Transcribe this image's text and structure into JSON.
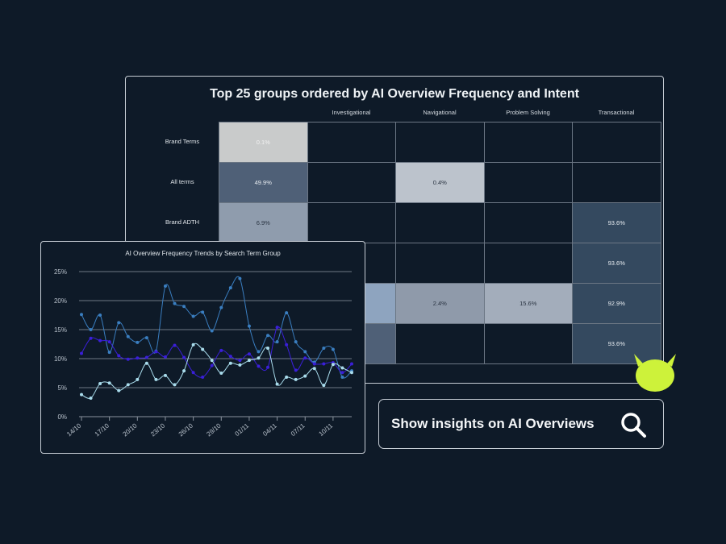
{
  "heatmap": {
    "title": "Top 25 groups ordered by AI Overview Frequency and Intent",
    "columns": [
      "",
      "Investigational",
      "Navigational",
      "Problem Solving",
      "Transactional"
    ],
    "rows": [
      {
        "label": "Brand Terms",
        "cells": [
          {
            "value": "0.1%",
            "color": "#c9cbcb",
            "text": "#f2f2f2"
          },
          null,
          null,
          null,
          null
        ]
      },
      {
        "label": "All terms",
        "cells": [
          {
            "value": "49.9%",
            "color": "#4f6077"
          },
          null,
          {
            "value": "0.4%",
            "color": "#bcc3cc",
            "text": "#2a3442"
          },
          null,
          null
        ]
      },
      {
        "label": "Brand ADTH",
        "cells": [
          {
            "value": "6.9%",
            "color": "#8f9cad",
            "text": "#2a3442"
          },
          null,
          null,
          null,
          {
            "value": "93.6%",
            "color": "#34495f"
          }
        ]
      },
      {
        "label": "",
        "cells": [
          null,
          null,
          null,
          null,
          {
            "value": "93.6%",
            "color": "#34495f"
          }
        ]
      },
      {
        "label": "",
        "cells": [
          null,
          {
            "value": "",
            "color": "#8ea4bf"
          },
          {
            "value": "2.4%",
            "color": "#8f9aaa",
            "text": "#2a3442"
          },
          {
            "value": "15.6%",
            "color": "#a3adbb",
            "text": "#2a3442"
          },
          {
            "value": "92.9%",
            "color": "#34495f"
          }
        ]
      },
      {
        "label": "",
        "cells": [
          null,
          {
            "value": "",
            "color": "#4f6077"
          },
          null,
          null,
          {
            "value": "93.6%",
            "color": "#34495f"
          }
        ]
      }
    ]
  },
  "chart_data": {
    "type": "line",
    "title": "AI Overview Frequency Trends by Search Term Group",
    "x": [
      "14/10",
      "15/10",
      "16/10",
      "17/10",
      "18/10",
      "19/10",
      "20/10",
      "21/10",
      "22/10",
      "23/10",
      "24/10",
      "25/10",
      "26/10",
      "27/10",
      "28/10",
      "29/10",
      "30/10",
      "31/10",
      "01/11",
      "02/11",
      "03/11",
      "04/11",
      "05/11",
      "06/11",
      "07/11",
      "08/11",
      "09/11",
      "10/11",
      "11/11",
      "12/11"
    ],
    "xticks": [
      "14/10",
      "17/10",
      "20/10",
      "23/10",
      "26/10",
      "29/10",
      "01/11",
      "04/11",
      "07/11",
      "10/11"
    ],
    "yticks": [
      "0%",
      "5%",
      "10%",
      "15%",
      "20%",
      "25%"
    ],
    "ylim": [
      0,
      25
    ],
    "grid": true,
    "series": [
      {
        "color": "#3a7ec0",
        "values": [
          17.6,
          15.0,
          17.5,
          11.1,
          16.2,
          13.8,
          12.8,
          13.6,
          11.3,
          22.5,
          19.5,
          19.0,
          17.3,
          18.0,
          14.8,
          18.8,
          22.2,
          23.8,
          15.6,
          11.2,
          14.0,
          12.9,
          17.9,
          12.9,
          11.2,
          9.4,
          11.8,
          11.6,
          6.8,
          7.9
        ]
      },
      {
        "color": "#3a1fd8",
        "values": [
          10.9,
          13.5,
          13.1,
          12.9,
          10.5,
          9.9,
          10.1,
          10.2,
          11.2,
          10.3,
          12.3,
          10.2,
          7.6,
          6.8,
          8.8,
          11.4,
          10.4,
          9.7,
          10.8,
          8.7,
          8.5,
          15.4,
          12.4,
          8.0,
          10.1,
          9.1,
          9.1,
          9.3,
          7.6,
          9.1
        ]
      },
      {
        "color": "#a9dcec",
        "values": [
          3.8,
          3.2,
          5.7,
          5.8,
          4.5,
          5.5,
          6.4,
          9.2,
          6.4,
          7.1,
          5.5,
          7.9,
          12.4,
          11.6,
          9.7,
          7.5,
          9.2,
          8.9,
          9.7,
          10.1,
          11.8,
          5.6,
          6.8,
          6.4,
          7.0,
          8.3,
          5.4,
          9.0,
          8.4,
          7.6
        ]
      }
    ]
  },
  "button": {
    "label": "Show insights on AI Overviews",
    "icon": "search-icon"
  },
  "mascot": {
    "color": "#cdf23a"
  }
}
